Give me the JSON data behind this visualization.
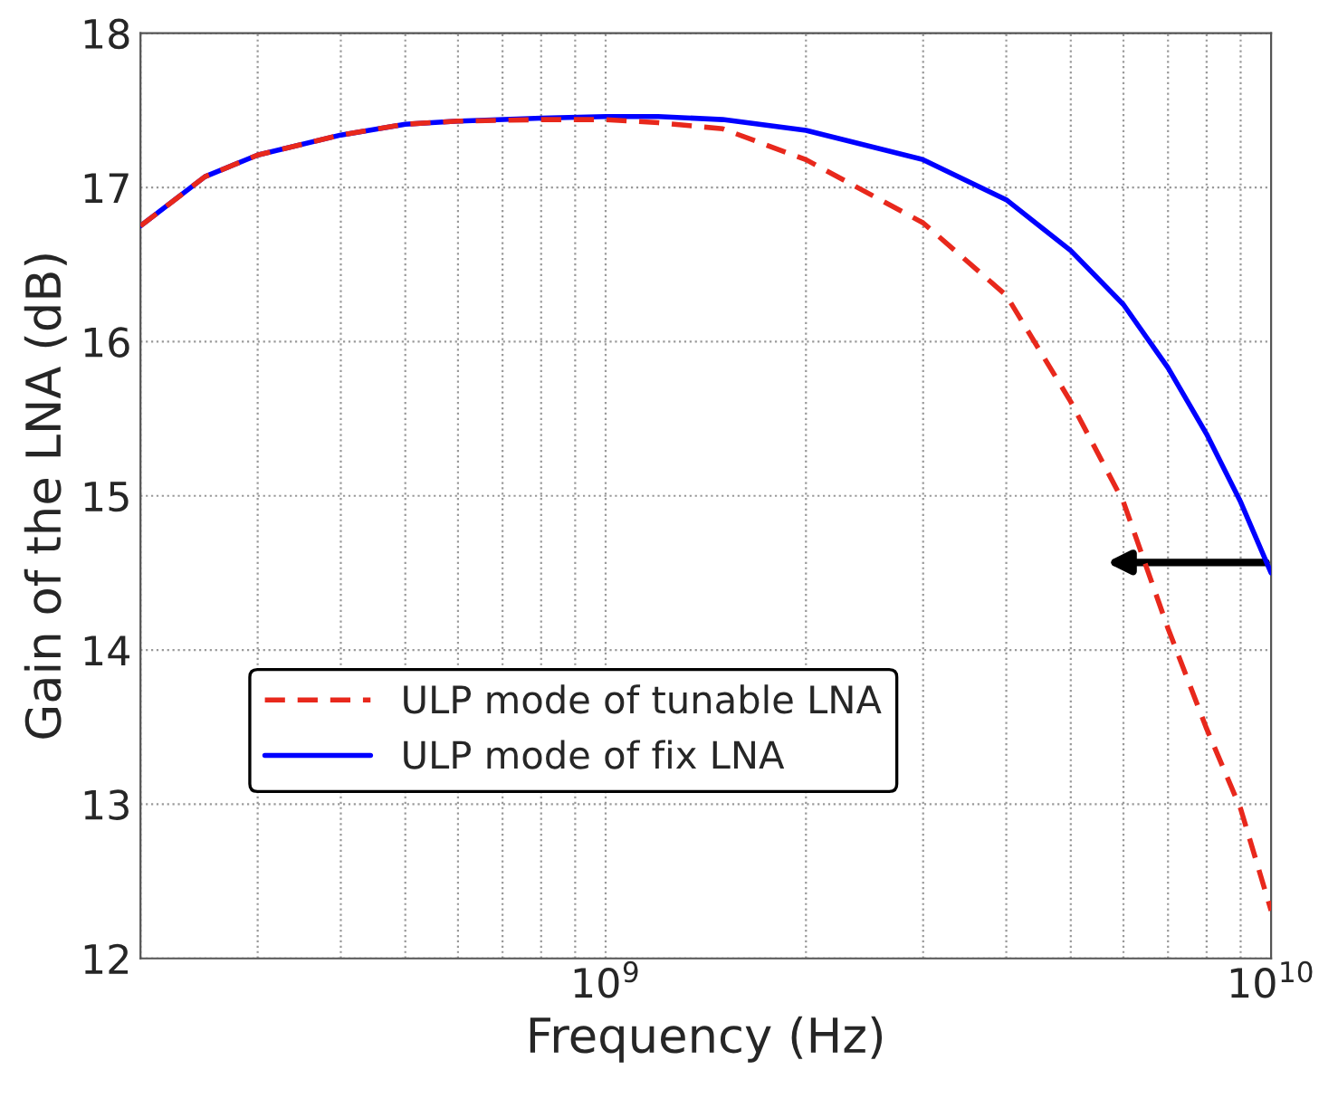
{
  "chart_data": {
    "type": "line",
    "xlabel": "Frequency (Hz)",
    "ylabel": "Gain of the LNA (dB)",
    "log": "x",
    "xlim": [
      200000000,
      10000000000
    ],
    "xticks": [
      {
        "value": 1000000000,
        "label": "10$^{9}$"
      },
      {
        "value": 10000000000,
        "label": "10$^{10}$"
      }
    ],
    "ylim": [
      12,
      18
    ],
    "yticks": [
      12,
      13,
      14,
      15,
      16,
      17,
      18
    ],
    "grid": true,
    "legend": "lower left",
    "series": [
      {
        "name": "ULP mode of tunable LNA",
        "color": "#e8281c",
        "line_style": "dashed",
        "x": [
          200000000,
          250000000,
          300000000,
          400000000,
          500000000,
          600000000,
          800000000,
          1000000000,
          1200000000,
          1500000000,
          2000000000,
          3000000000,
          4000000000,
          5000000000,
          6000000000,
          7000000000,
          8000000000,
          9000000000,
          10000000000
        ],
        "values": [
          16.75,
          17.07,
          17.21,
          17.34,
          17.41,
          17.43,
          17.44,
          17.44,
          17.42,
          17.38,
          17.18,
          16.77,
          16.3,
          15.61,
          14.96,
          14.14,
          13.49,
          12.97,
          12.31
        ]
      },
      {
        "name": "ULP mode of fix LNA",
        "color": "#0000ff",
        "line_style": "solid",
        "x": [
          200000000,
          250000000,
          300000000,
          400000000,
          500000000,
          600000000,
          800000000,
          1000000000,
          1200000000,
          1500000000,
          2000000000,
          3000000000,
          4000000000,
          5000000000,
          6000000000,
          7000000000,
          8000000000,
          9000000000,
          10000000000
        ],
        "values": [
          16.75,
          17.07,
          17.21,
          17.34,
          17.41,
          17.43,
          17.45,
          17.46,
          17.46,
          17.44,
          17.37,
          17.18,
          16.92,
          16.59,
          16.24,
          15.83,
          15.4,
          14.96,
          14.5
        ]
      }
    ]
  }
}
